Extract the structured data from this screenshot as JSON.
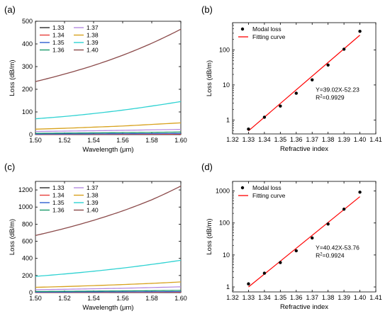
{
  "figure": {
    "panels": [
      {
        "label": "(a)",
        "kind": "line",
        "xlabel": "Wavelength (μm)",
        "ylabel": "Loss (dB/m)",
        "xlim": [
          1.5,
          1.6
        ],
        "ylim": [
          0,
          500
        ],
        "xticks": [
          1.5,
          1.52,
          1.54,
          1.56,
          1.58,
          1.6
        ],
        "yticks": [
          0,
          100,
          200,
          300,
          400,
          500
        ]
      },
      {
        "label": "(b)",
        "kind": "scatter-fit",
        "xlabel": "Refractive index",
        "ylabel": "Loss (dB/m)",
        "xlim": [
          1.32,
          1.41
        ],
        "ylim_log": [
          0.4,
          600
        ],
        "xticks": [
          1.32,
          1.33,
          1.34,
          1.35,
          1.36,
          1.37,
          1.38,
          1.39,
          1.4,
          1.41
        ],
        "yticks": [
          1,
          10,
          100
        ],
        "legend": [
          "Modal loss",
          "Fitting curve"
        ],
        "equation": "Y=39.02X-52.23",
        "r2_prefix": "R",
        "r2_value": "=0.9929"
      },
      {
        "label": "(c)",
        "kind": "line",
        "xlabel": "Wavelength (μm)",
        "ylabel": "Loss (dB/m)",
        "xlim": [
          1.5,
          1.6
        ],
        "ylim": [
          0,
          1300
        ],
        "xticks": [
          1.5,
          1.52,
          1.54,
          1.56,
          1.58,
          1.6
        ],
        "yticks": [
          0,
          200,
          400,
          600,
          800,
          1000,
          1200
        ]
      },
      {
        "label": "(d)",
        "kind": "scatter-fit",
        "xlabel": "Refractive index",
        "ylabel": "Loss (dB/m)",
        "xlim": [
          1.32,
          1.41
        ],
        "ylim_log": [
          0.7,
          2000
        ],
        "xticks": [
          1.32,
          1.33,
          1.34,
          1.35,
          1.36,
          1.37,
          1.38,
          1.39,
          1.4,
          1.41
        ],
        "yticks": [
          1,
          10,
          100,
          1000
        ],
        "legend": [
          "Modal loss",
          "Fitting curve"
        ],
        "equation": "Y=40.42X-53.76",
        "r2_prefix": "R",
        "r2_value": "=0.9924"
      }
    ]
  },
  "colors": {
    "1.33": "#2b2b2b",
    "1.34": "#e8403a",
    "1.35": "#2f5fd0",
    "1.36": "#1a9a6a",
    "1.37": "#b58be0",
    "1.38": "#d8a21e",
    "1.39": "#2fd2d2",
    "1.40": "#8b4a4a",
    "fit": "#ff0000",
    "points": "#000000"
  },
  "chart_data": [
    {
      "type": "line",
      "panel": "(a)",
      "xlabel": "Wavelength (μm)",
      "ylabel": "Loss (dB/m)",
      "xlim": [
        1.5,
        1.6
      ],
      "ylim": [
        0,
        500
      ],
      "x": [
        1.5,
        1.52,
        1.54,
        1.56,
        1.58,
        1.6
      ],
      "series": [
        {
          "name": "1.33",
          "values": [
            0.6,
            0.7,
            0.8,
            0.9,
            1.0,
            1.1
          ]
        },
        {
          "name": "1.34",
          "values": [
            1.2,
            1.4,
            1.6,
            1.8,
            2.0,
            2.3
          ]
        },
        {
          "name": "1.35",
          "values": [
            2.5,
            2.9,
            3.4,
            3.9,
            4.4,
            5.0
          ]
        },
        {
          "name": "1.36",
          "values": [
            5.8,
            6.7,
            7.7,
            8.8,
            10,
            11.5
          ]
        },
        {
          "name": "1.37",
          "values": [
            14,
            15.5,
            17,
            19,
            21,
            23
          ]
        },
        {
          "name": "1.38",
          "values": [
            24,
            28,
            33,
            38,
            45,
            52
          ]
        },
        {
          "name": "1.39",
          "values": [
            70,
            80,
            93,
            108,
            126,
            146
          ]
        },
        {
          "name": "1.40",
          "values": [
            234,
            267,
            305,
            350,
            403,
            465
          ]
        }
      ]
    },
    {
      "type": "scatter",
      "panel": "(b)",
      "xlabel": "Refractive index",
      "ylabel": "Loss (dB/m)",
      "y_scale": "log",
      "xlim": [
        1.32,
        1.41
      ],
      "ylim": [
        0.4,
        600
      ],
      "series": [
        {
          "name": "Modal loss",
          "x": [
            1.33,
            1.34,
            1.35,
            1.36,
            1.37,
            1.38,
            1.39,
            1.4
          ],
          "y": [
            0.55,
            1.2,
            2.5,
            5.8,
            14,
            37,
            105,
            340
          ]
        },
        {
          "name": "Fitting curve",
          "x": [
            1.33,
            1.4
          ],
          "y": [
            0.49,
            264
          ]
        }
      ],
      "annotations": [
        "Y=39.02X-52.23",
        "R2=0.9929"
      ]
    },
    {
      "type": "line",
      "panel": "(c)",
      "xlabel": "Wavelength (μm)",
      "ylabel": "Loss (dB/m)",
      "xlim": [
        1.5,
        1.6
      ],
      "ylim": [
        0,
        1300
      ],
      "x": [
        1.5,
        1.52,
        1.54,
        1.56,
        1.58,
        1.6
      ],
      "series": [
        {
          "name": "1.33",
          "values": [
            1.3,
            1.5,
            1.7,
            1.9,
            2.2,
            2.5
          ]
        },
        {
          "name": "1.34",
          "values": [
            2.7,
            3.1,
            3.6,
            4.1,
            4.7,
            5.4
          ]
        },
        {
          "name": "1.35",
          "values": [
            5.8,
            6.7,
            7.7,
            8.8,
            10,
            11.5
          ]
        },
        {
          "name": "1.36",
          "values": [
            13,
            15,
            17.5,
            20,
            23,
            26.5
          ]
        },
        {
          "name": "1.37",
          "values": [
            34,
            39,
            45,
            51,
            59,
            68
          ]
        },
        {
          "name": "1.38",
          "values": [
            62,
            71,
            82,
            94,
            108,
            125
          ]
        },
        {
          "name": "1.39",
          "values": [
            190,
            218,
            250,
            287,
            330,
            378
          ]
        },
        {
          "name": "1.40",
          "values": [
            668,
            750,
            845,
            955,
            1085,
            1245
          ]
        }
      ]
    },
    {
      "type": "scatter",
      "panel": "(d)",
      "xlabel": "Refractive index",
      "ylabel": "Loss (dB/m)",
      "y_scale": "log",
      "xlim": [
        1.32,
        1.41
      ],
      "ylim": [
        0.7,
        2000
      ],
      "series": [
        {
          "name": "Modal loss",
          "x": [
            1.33,
            1.34,
            1.35,
            1.36,
            1.37,
            1.38,
            1.39,
            1.4
          ],
          "y": [
            1.25,
            2.7,
            5.8,
            13.5,
            34,
            93,
            270,
            920
          ]
        },
        {
          "name": "Fitting curve",
          "x": [
            1.33,
            1.4
          ],
          "y": [
            1.0,
            666
          ]
        }
      ],
      "annotations": [
        "Y=40.42X-53.76",
        "R2=0.9924"
      ]
    }
  ]
}
